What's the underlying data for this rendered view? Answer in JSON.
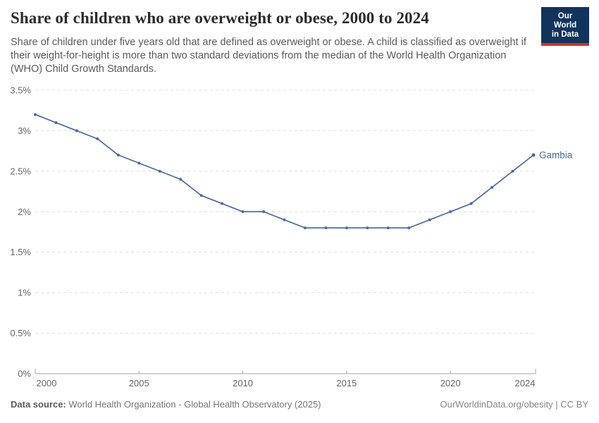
{
  "header": {
    "title": "Share of children who are overweight or obese, 2000 to 2024",
    "subtitle": "Share of children under five years old that are defined as overweight or obese. A child is classified as overweight if their weight-for-height is more than two standard deviations from the median of the World Health Organization (WHO) Child Growth Standards.",
    "logo": {
      "line1": "Our World",
      "line2": "in Data"
    }
  },
  "chart_data": {
    "type": "line",
    "title": "Share of children who are overweight or obese, 2000 to 2024",
    "x": [
      2000,
      2001,
      2002,
      2003,
      2004,
      2005,
      2006,
      2007,
      2008,
      2009,
      2010,
      2011,
      2012,
      2013,
      2014,
      2015,
      2016,
      2017,
      2018,
      2019,
      2020,
      2021,
      2022,
      2023,
      2024
    ],
    "series": [
      {
        "name": "Gambia",
        "values": [
          3.2,
          3.1,
          3.0,
          2.9,
          2.7,
          2.6,
          2.5,
          2.4,
          2.2,
          2.1,
          2.0,
          2.0,
          1.9,
          1.8,
          1.8,
          1.8,
          1.8,
          1.8,
          1.8,
          1.9,
          2.0,
          2.1,
          2.3,
          2.5,
          2.7
        ],
        "color": "#4C6A9C"
      }
    ],
    "xlim": [
      2000,
      2024
    ],
    "ylim": [
      0,
      3.5
    ],
    "x_ticks": [
      2000,
      2005,
      2010,
      2015,
      2020,
      2024
    ],
    "y_ticks": [
      0,
      0.5,
      1,
      1.5,
      2,
      2.5,
      3,
      3.5
    ],
    "y_tick_suffix": "%",
    "grid": "horizontal-dashed",
    "legend_position": "end-of-line-label",
    "end_label": "Gambia"
  },
  "footer": {
    "source_label": "Data source:",
    "source_text": " World Health Organization - Global Health Observatory (2025)",
    "rights_text": "OurWorldinData.org/obesity | CC BY"
  },
  "colors": {
    "line": "#4C6A9C",
    "grid": "#dcdcdc",
    "axis": "#a5a5a5",
    "tick_label": "#666666",
    "title": "#2b2b2b",
    "subtitle": "#5b5b5b",
    "footer": "#757575",
    "logo_bg": "#12335c",
    "logo_bar": "#c5372c"
  }
}
